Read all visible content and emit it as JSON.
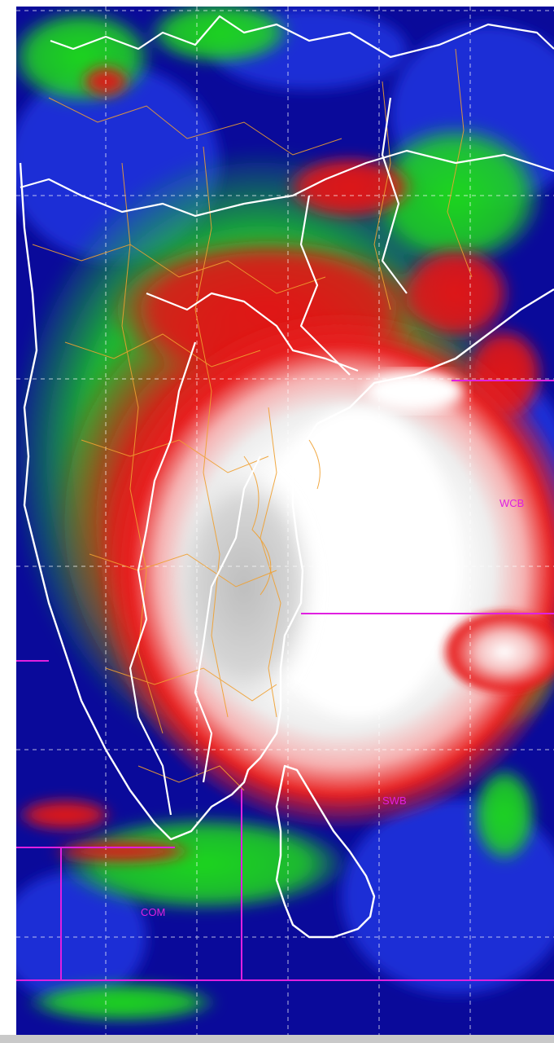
{
  "map": {
    "colors": {
      "deep_blue": "#0a0a9a",
      "blue": "#1a2fd6",
      "green": "#1fd61f",
      "red": "#e01818",
      "pink": "#f28080",
      "white": "#ffffff",
      "grey": "#c8c8c8",
      "coast": "#ffffff",
      "district_border": "#f0a030",
      "marine_boundary": "#e020e0",
      "grid": "#ffffff"
    },
    "labels": {
      "wcb": "WCB",
      "swb": "SWB",
      "com": "COM"
    }
  }
}
